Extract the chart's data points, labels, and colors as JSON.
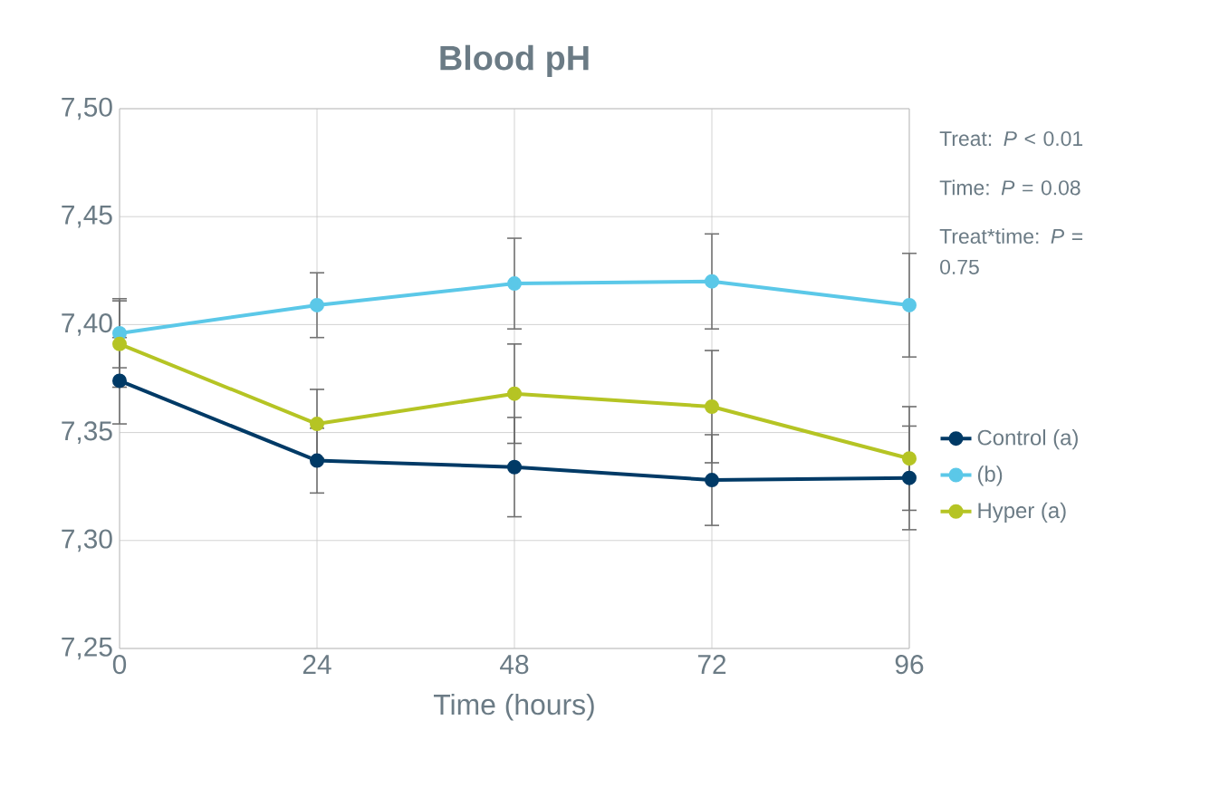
{
  "chart_data": {
    "type": "line",
    "title": "Blood pH",
    "xlabel": "Time (hours)",
    "x": [
      0,
      24,
      48,
      72,
      96
    ],
    "xlim": [
      0,
      96
    ],
    "xticks": [
      0,
      24,
      48,
      72,
      96
    ],
    "ylim": [
      7.25,
      7.5
    ],
    "yticks": [
      {
        "value": 7.25,
        "label": "7,25"
      },
      {
        "value": 7.3,
        "label": "7,30"
      },
      {
        "value": 7.35,
        "label": "7,35"
      },
      {
        "value": 7.4,
        "label": "7,40"
      },
      {
        "value": 7.45,
        "label": "7,45"
      },
      {
        "value": 7.5,
        "label": "7,50"
      }
    ],
    "series": [
      {
        "name": "Control  (a)",
        "color": "#003a66",
        "values": [
          7.374,
          7.337,
          7.334,
          7.328,
          7.329
        ],
        "errors": [
          0.02,
          0.015,
          0.023,
          0.021,
          0.024
        ]
      },
      {
        "name": "(b)",
        "color": "#5bc8e8",
        "values": [
          7.396,
          7.409,
          7.419,
          7.42,
          7.409
        ],
        "errors": [
          0.016,
          0.015,
          0.021,
          0.022,
          0.024
        ]
      },
      {
        "name": "Hyper (a)",
        "color": "#b5c424",
        "values": [
          7.391,
          7.354,
          7.368,
          7.362,
          7.338
        ],
        "errors": [
          0.02,
          0.016,
          0.023,
          0.026,
          0.024
        ]
      }
    ],
    "annotations": [
      "Treat: *P* < 0.01",
      "Time: *P* = 0.08",
      "Treat*time: *P* = 0.75"
    ],
    "grid": true,
    "legend": "right",
    "marker": "circle",
    "line_style": "solid"
  }
}
